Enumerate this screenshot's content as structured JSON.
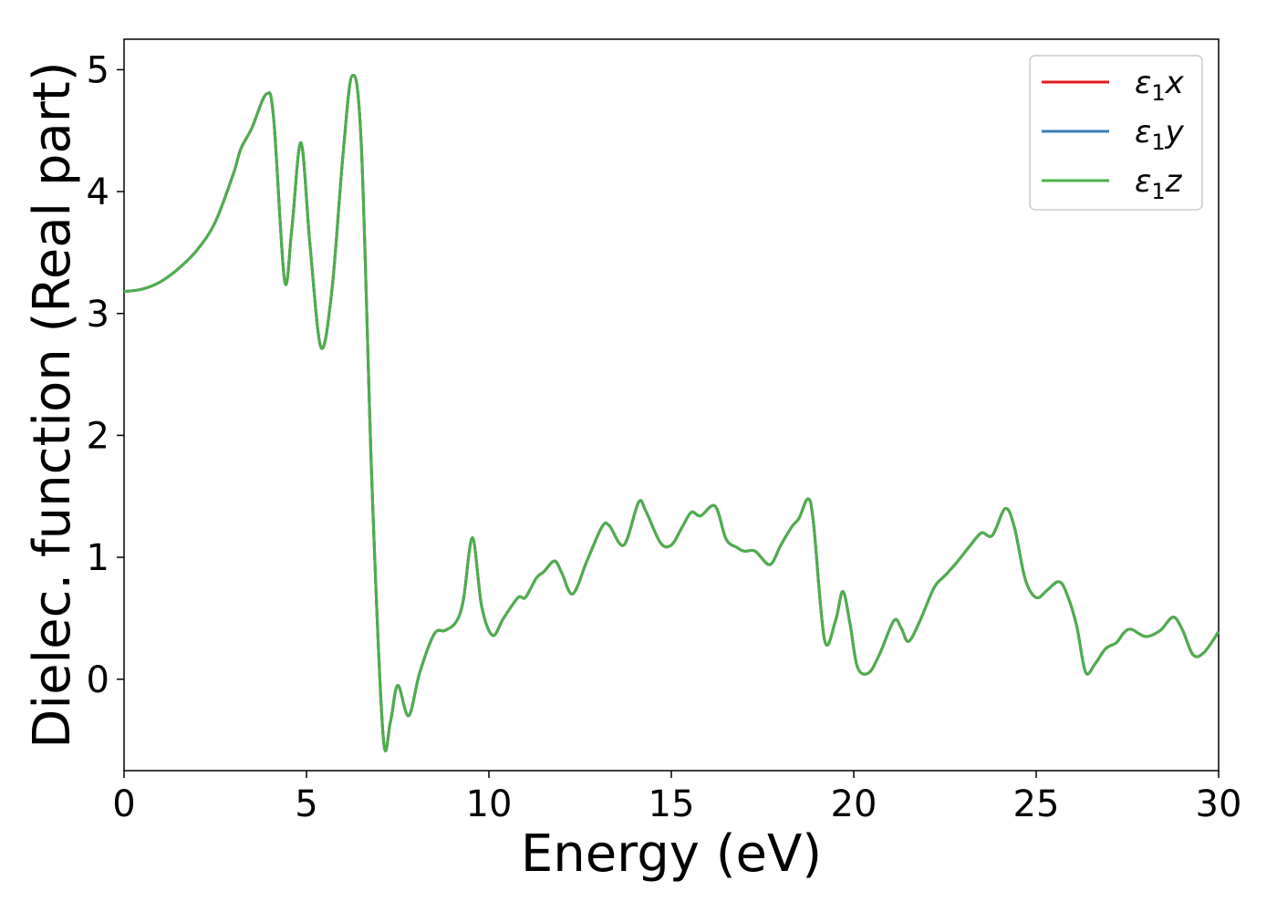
{
  "chart_data": {
    "type": "line",
    "title": "",
    "xlabel": "Energy (eV)",
    "ylabel": "Dielec. function (Real part)",
    "xlim": [
      0,
      30
    ],
    "ylim": [
      -0.75,
      5.25
    ],
    "xticks": [
      0,
      5,
      10,
      15,
      20,
      25,
      30
    ],
    "yticks": [
      0,
      1,
      2,
      3,
      4,
      5
    ],
    "grid": false,
    "legend_position": "top-right",
    "series": [
      {
        "name": "ε1x",
        "legend_main": "ε",
        "legend_sub": "1",
        "legend_var": "x",
        "color": "#e41a1c"
      },
      {
        "name": "ε1y",
        "legend_main": "ε",
        "legend_sub": "1",
        "legend_var": "y",
        "color": "#377eb8"
      },
      {
        "name": "ε1z",
        "legend_main": "ε",
        "legend_sub": "1",
        "legend_var": "z",
        "color": "#4daf4a"
      }
    ],
    "x": [
      0,
      0.5,
      1.0,
      1.5,
      2.0,
      2.5,
      3.0,
      3.2,
      3.5,
      3.9,
      4.1,
      4.4,
      4.6,
      4.85,
      5.1,
      5.4,
      5.7,
      6.0,
      6.25,
      6.5,
      6.8,
      7.1,
      7.3,
      7.5,
      7.8,
      8.1,
      8.5,
      8.8,
      9.1,
      9.3,
      9.55,
      9.8,
      10.1,
      10.4,
      10.8,
      11.0,
      11.3,
      11.5,
      11.8,
      12.0,
      12.3,
      12.7,
      13.1,
      13.3,
      13.7,
      14.1,
      14.3,
      14.7,
      15.0,
      15.3,
      15.55,
      15.8,
      16.2,
      16.5,
      16.8,
      17.0,
      17.3,
      17.7,
      18.0,
      18.3,
      18.5,
      18.75,
      18.9,
      19.2,
      19.5,
      19.7,
      19.9,
      20.1,
      20.4,
      20.7,
      21.1,
      21.3,
      21.5,
      21.8,
      22.2,
      22.5,
      22.8,
      23.2,
      23.5,
      23.8,
      24.15,
      24.4,
      24.7,
      25.0,
      25.3,
      25.6,
      25.8,
      26.1,
      26.35,
      26.6,
      26.9,
      27.2,
      27.4,
      27.6,
      28.0,
      28.4,
      28.75,
      29.0,
      29.3,
      29.6,
      30.0
    ],
    "y": [
      3.18,
      3.2,
      3.26,
      3.37,
      3.52,
      3.75,
      4.15,
      4.35,
      4.52,
      4.8,
      4.6,
      3.27,
      3.7,
      4.4,
      3.55,
      2.72,
      3.2,
      4.3,
      4.95,
      4.4,
      1.55,
      -0.46,
      -0.35,
      -0.05,
      -0.3,
      0.05,
      0.37,
      0.4,
      0.47,
      0.65,
      1.16,
      0.6,
      0.36,
      0.5,
      0.67,
      0.67,
      0.83,
      0.88,
      0.97,
      0.87,
      0.7,
      0.98,
      1.25,
      1.26,
      1.1,
      1.45,
      1.38,
      1.12,
      1.1,
      1.25,
      1.37,
      1.34,
      1.42,
      1.15,
      1.08,
      1.05,
      1.05,
      0.94,
      1.1,
      1.25,
      1.32,
      1.48,
      1.27,
      0.32,
      0.48,
      0.72,
      0.45,
      0.1,
      0.05,
      0.2,
      0.48,
      0.42,
      0.31,
      0.47,
      0.75,
      0.85,
      0.95,
      1.1,
      1.2,
      1.18,
      1.4,
      1.25,
      0.82,
      0.67,
      0.73,
      0.8,
      0.73,
      0.45,
      0.06,
      0.12,
      0.25,
      0.3,
      0.38,
      0.41,
      0.35,
      0.4,
      0.51,
      0.41,
      0.2,
      0.22,
      0.39
    ]
  }
}
